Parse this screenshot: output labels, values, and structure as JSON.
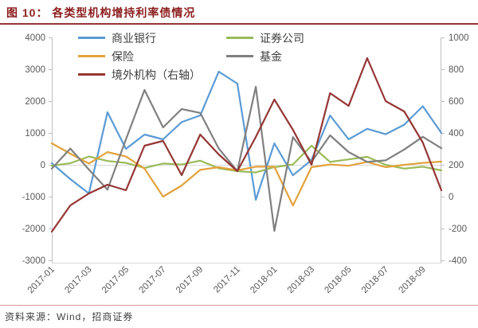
{
  "header": {
    "title": "图 10： 各类型机构增持利率债情况"
  },
  "footer": {
    "source": "资料来源：Wind，招商证券"
  },
  "theme": {
    "title_color": "#8C1D1D",
    "title_rule_color": "#943634",
    "footer_rule_color": "#D99694",
    "axis_line_color": "#BFBFBF",
    "gridline_color": "#D9D9D9",
    "tick_label_color": "#595959"
  },
  "chart_data": {
    "type": "line",
    "title": "各类型机构增持利率债情况",
    "x": [
      "2017-01",
      "2017-02",
      "2017-03",
      "2017-04",
      "2017-05",
      "2017-06",
      "2017-07",
      "2017-08",
      "2017-09",
      "2017-10",
      "2017-11",
      "2017-12",
      "2018-01",
      "2018-02",
      "2018-03",
      "2018-04",
      "2018-05",
      "2018-06",
      "2018-07",
      "2018-08",
      "2018-09",
      "2018-10"
    ],
    "x_tick_labels": [
      "2017-01",
      "2017-03",
      "2017-05",
      "2017-07",
      "2017-09",
      "2017-11",
      "2018-01",
      "2018-03",
      "2018-05",
      "2018-07",
      "2018-09"
    ],
    "left_axis": {
      "min": -3000,
      "max": 4000,
      "step": 1000,
      "ticks": [
        4000,
        3000,
        2000,
        1000,
        0,
        -1000,
        -2000,
        -3000
      ]
    },
    "right_axis": {
      "min": -400,
      "max": 1000,
      "step": 200,
      "ticks": [
        1000,
        800,
        600,
        400,
        200,
        0,
        -200,
        -400
      ]
    },
    "grid": "zero-line-only",
    "legend_position": "top-inside",
    "series": [
      {
        "name": "商业银行",
        "axis": "left",
        "color": "#5B9BD5",
        "values": [
          50,
          -450,
          -900,
          1650,
          500,
          950,
          800,
          1340,
          1550,
          2925,
          2550,
          -1100,
          675,
          -330,
          150,
          1550,
          800,
          1130,
          960,
          1260,
          1840,
          1000
        ]
      },
      {
        "name": "证券公司",
        "axis": "left",
        "color": "#9BBB59",
        "values": [
          -30,
          50,
          260,
          120,
          60,
          -100,
          40,
          10,
          130,
          -110,
          -200,
          -240,
          -75,
          10,
          600,
          90,
          170,
          250,
          0,
          -120,
          -60,
          -175
        ]
      },
      {
        "name": "保险",
        "axis": "left",
        "color": "#E2A23C",
        "values": [
          675,
          350,
          40,
          400,
          260,
          -120,
          -1000,
          -650,
          -160,
          -75,
          -175,
          -60,
          -60,
          -1280,
          -75,
          10,
          -30,
          90,
          -75,
          0,
          60,
          100
        ]
      },
      {
        "name": "基金",
        "axis": "left",
        "color": "#808080",
        "values": [
          -120,
          510,
          -150,
          -780,
          800,
          2350,
          1175,
          1750,
          1630,
          510,
          -200,
          2450,
          -2075,
          870,
          90,
          925,
          400,
          90,
          140,
          480,
          880,
          520
        ]
      },
      {
        "name": "境外机构（右轴）",
        "axis": "right",
        "color": "#943634",
        "values": [
          -220,
          -55,
          20,
          75,
          40,
          320,
          350,
          135,
          390,
          265,
          160,
          375,
          610,
          420,
          200,
          650,
          570,
          870,
          600,
          535,
          340,
          40
        ]
      }
    ]
  }
}
